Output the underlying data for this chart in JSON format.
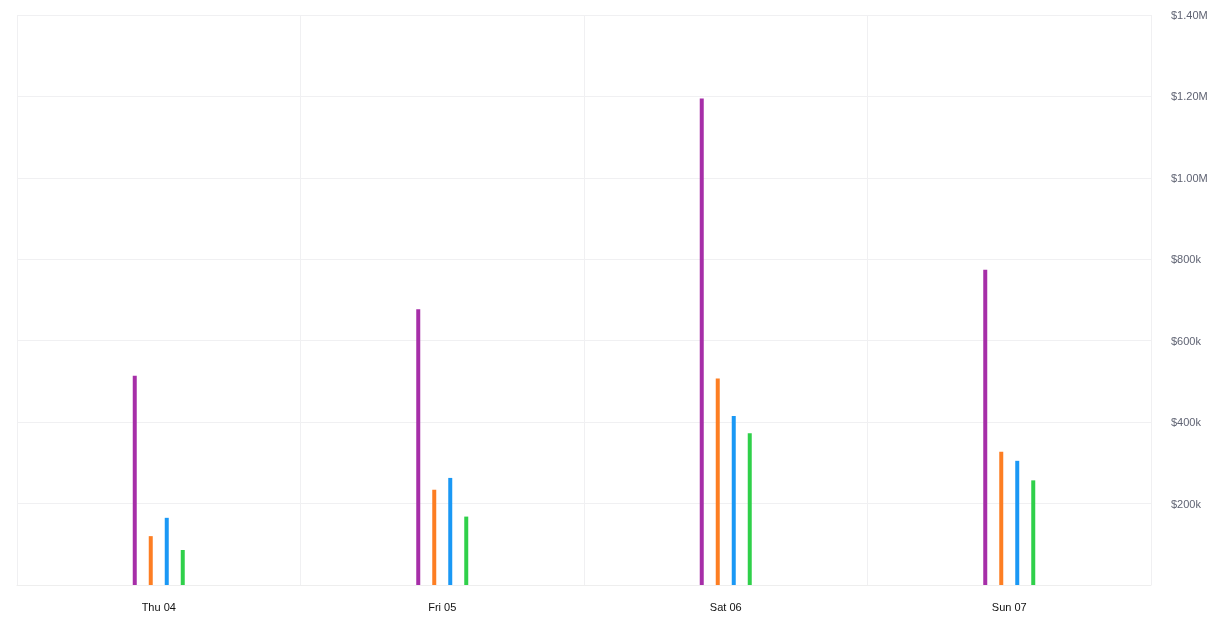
{
  "chart_data": {
    "type": "bar",
    "categories": [
      "Thu 04",
      "Fri 05",
      "Sat 06",
      "Sun 07"
    ],
    "series": [
      {
        "color": "#a62ea8",
        "values": [
          514000,
          677000,
          1195000,
          774000
        ]
      },
      {
        "color": "#fd7e23",
        "values": [
          120000,
          234000,
          507000,
          327000
        ]
      },
      {
        "color": "#1a98f5",
        "values": [
          165000,
          263000,
          415000,
          305000
        ]
      },
      {
        "color": "#2fd04a",
        "values": [
          86000,
          168000,
          373000,
          257000
        ]
      }
    ],
    "ylim": [
      0,
      1400000
    ],
    "yticks": [
      {
        "value": 0,
        "label": null
      },
      {
        "value": 200000,
        "label": "$200k"
      },
      {
        "value": 400000,
        "label": "$400k"
      },
      {
        "value": 600000,
        "label": "$600k"
      },
      {
        "value": 800000,
        "label": "$800k"
      },
      {
        "value": 1000000,
        "label": "$1.00M"
      },
      {
        "value": 1200000,
        "label": "$1.20M"
      },
      {
        "value": 1400000,
        "label": "$1.40M"
      }
    ],
    "grid": true
  }
}
